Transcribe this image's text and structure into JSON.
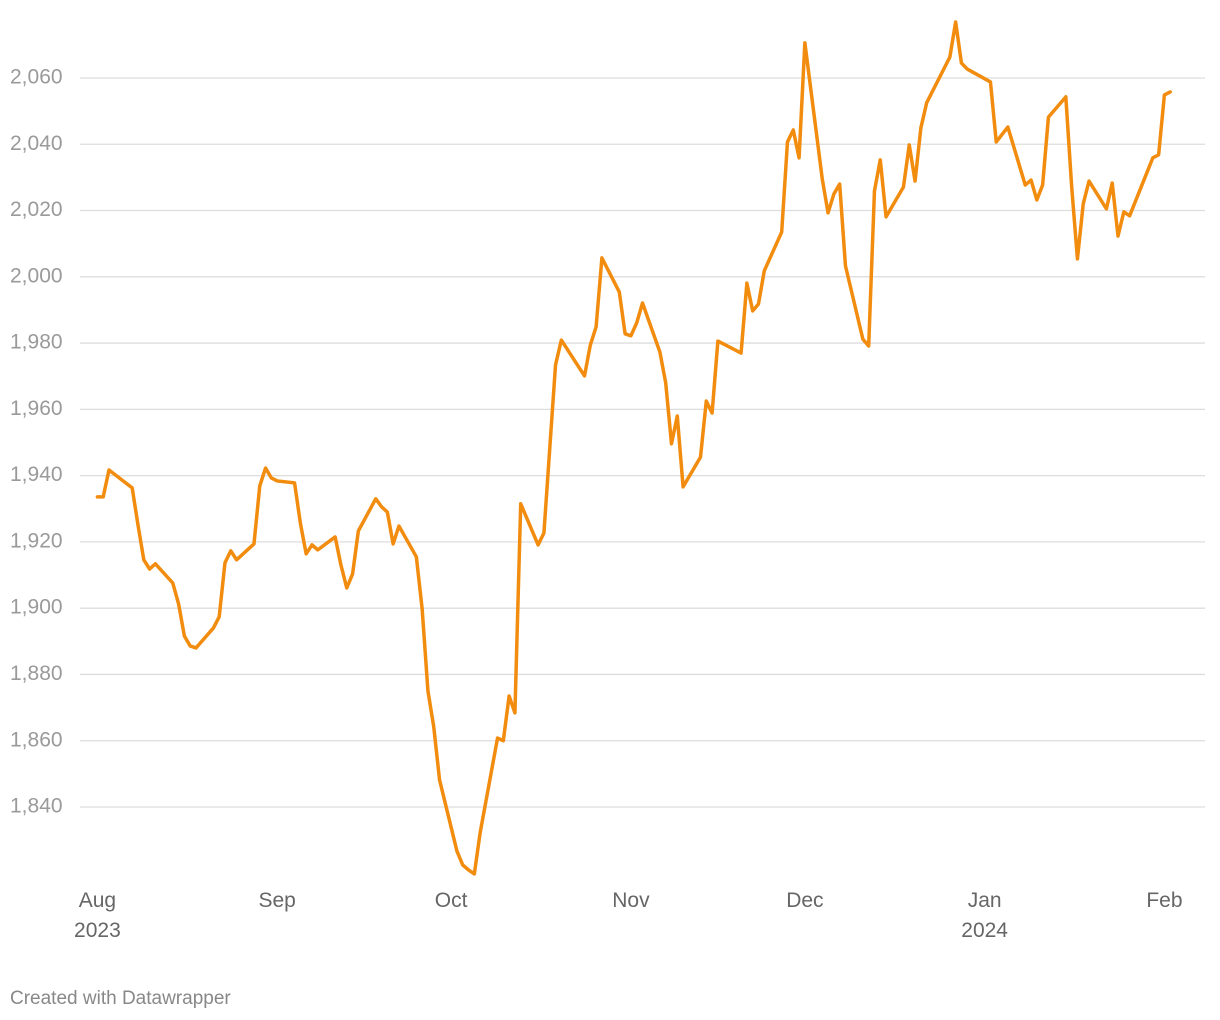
{
  "chart_data": {
    "type": "line",
    "x": [
      "2023-08-01",
      "2023-08-02",
      "2023-08-03",
      "2023-08-07",
      "2023-08-08",
      "2023-08-09",
      "2023-08-10",
      "2023-08-11",
      "2023-08-14",
      "2023-08-15",
      "2023-08-16",
      "2023-08-17",
      "2023-08-18",
      "2023-08-21",
      "2023-08-22",
      "2023-08-23",
      "2023-08-24",
      "2023-08-25",
      "2023-08-28",
      "2023-08-29",
      "2023-08-30",
      "2023-08-31",
      "2023-09-01",
      "2023-09-04",
      "2023-09-05",
      "2023-09-06",
      "2023-09-07",
      "2023-09-08",
      "2023-09-11",
      "2023-09-12",
      "2023-09-13",
      "2023-09-14",
      "2023-09-15",
      "2023-09-18",
      "2023-09-19",
      "2023-09-20",
      "2023-09-21",
      "2023-09-22",
      "2023-09-25",
      "2023-09-26",
      "2023-09-27",
      "2023-09-28",
      "2023-09-29",
      "2023-10-02",
      "2023-10-03",
      "2023-10-04",
      "2023-10-05",
      "2023-10-06",
      "2023-10-09",
      "2023-10-10",
      "2023-10-11",
      "2023-10-12",
      "2023-10-13",
      "2023-10-16",
      "2023-10-17",
      "2023-10-19",
      "2023-10-20",
      "2023-10-24",
      "2023-10-25",
      "2023-10-26",
      "2023-10-27",
      "2023-10-30",
      "2023-10-31",
      "2023-11-01",
      "2023-11-02",
      "2023-11-03",
      "2023-11-06",
      "2023-11-07",
      "2023-11-08",
      "2023-11-09",
      "2023-11-10",
      "2023-11-13",
      "2023-11-14",
      "2023-11-15",
      "2023-11-16",
      "2023-11-20",
      "2023-11-21",
      "2023-11-22",
      "2023-11-23",
      "2023-11-24",
      "2023-11-27",
      "2023-11-28",
      "2023-11-29",
      "2023-11-30",
      "2023-12-01",
      "2023-12-04",
      "2023-12-05",
      "2023-12-06",
      "2023-12-07",
      "2023-12-08",
      "2023-12-11",
      "2023-12-12",
      "2023-12-13",
      "2023-12-14",
      "2023-12-15",
      "2023-12-18",
      "2023-12-19",
      "2023-12-20",
      "2023-12-21",
      "2023-12-22",
      "2023-12-26",
      "2023-12-27",
      "2023-12-28",
      "2023-12-29",
      "2024-01-02",
      "2024-01-03",
      "2024-01-05",
      "2024-01-08",
      "2024-01-09",
      "2024-01-10",
      "2024-01-11",
      "2024-01-12",
      "2024-01-15",
      "2024-01-16",
      "2024-01-17",
      "2024-01-18",
      "2024-01-19",
      "2024-01-22",
      "2024-01-23",
      "2024-01-24",
      "2024-01-25",
      "2024-01-26",
      "2024-01-30",
      "2024-01-31",
      "2024-02-01",
      "2024-02-02"
    ],
    "values": [
      1933.6,
      1933.6,
      1941.7,
      1936.3,
      1925.1,
      1914.6,
      1911.8,
      1913.4,
      1907.6,
      1901.3,
      1891.6,
      1888.6,
      1888,
      1894,
      1897.4,
      1913.7,
      1917.3,
      1914.6,
      1919.4,
      1936.9,
      1942.3,
      1939.3,
      1938.4,
      1937.8,
      1925.7,
      1916.4,
      1919.1,
      1917.6,
      1921.5,
      1913,
      1906.1,
      1910.3,
      1923.3,
      1933,
      1930.6,
      1929,
      1919.4,
      1924.8,
      1915.5,
      1899.8,
      1875,
      1864.2,
      1848.2,
      1826.7,
      1822.5,
      1821,
      1819.8,
      1832.2,
      1860.8,
      1860,
      1873.5,
      1868.4,
      1931.5,
      1919.1,
      1922.7,
      1973.4,
      1980.9,
      1970.1,
      1979.4,
      1984.9,
      2005.7,
      1995.4,
      1982.8,
      1982.2,
      1986.1,
      1992.1,
      1977.3,
      1968,
      1949.6,
      1958,
      1936.6,
      1945.6,
      1962.5,
      1958.9,
      1980.6,
      1977,
      1998.1,
      1989.7,
      1991.8,
      2001.8,
      2013.5,
      2040.7,
      2044.3,
      2035.9,
      2070.6,
      2029.5,
      2019.3,
      2025,
      2028,
      2003.3,
      1981.2,
      1979.1,
      2025.9,
      2035.3,
      2018.1,
      2027.1,
      2039.8,
      2028.9,
      2044.9,
      2052.5,
      2066.3,
      2076.9,
      2064.5,
      2062.7,
      2058.8,
      2040.7,
      2045.2,
      2027.7,
      2029.2,
      2023.2,
      2027.7,
      2048.2,
      2054.3,
      2027.4,
      2005.4,
      2022,
      2028.9,
      2020.5,
      2028.3,
      2012.3,
      2019.6,
      2018.4,
      2035.9,
      2036.8,
      2054.9,
      2055.8
    ],
    "color": "#f28c0f",
    "xlim": [
      "2023-07-29",
      "2024-02-08"
    ],
    "xticks": [
      {
        "value": "2023-08-01",
        "label": "Aug\n2023"
      },
      {
        "value": "2023-09-01",
        "label": "Sep"
      },
      {
        "value": "2023-10-01",
        "label": "Oct"
      },
      {
        "value": "2023-11-01",
        "label": "Nov"
      },
      {
        "value": "2023-12-01",
        "label": "Dec"
      },
      {
        "value": "2024-01-01",
        "label": "Jan\n2024"
      },
      {
        "value": "2024-02-01",
        "label": "Feb"
      }
    ],
    "ylim": [
      1818,
      2081
    ],
    "yticks": [
      {
        "value": 1840,
        "label": "1,840"
      },
      {
        "value": 1860,
        "label": "1,860"
      },
      {
        "value": 1880,
        "label": "1,880"
      },
      {
        "value": 1900,
        "label": "1,900"
      },
      {
        "value": 1920,
        "label": "1,920"
      },
      {
        "value": 1940,
        "label": "1,940"
      },
      {
        "value": 1960,
        "label": "1,960"
      },
      {
        "value": 1980,
        "label": "1,980"
      },
      {
        "value": 2000,
        "label": "2,000"
      },
      {
        "value": 2020,
        "label": "2,020"
      },
      {
        "value": 2040,
        "label": "2,040"
      },
      {
        "value": 2060,
        "label": "2,060"
      }
    ],
    "grid": true,
    "credit": "Created with Datawrapper"
  }
}
